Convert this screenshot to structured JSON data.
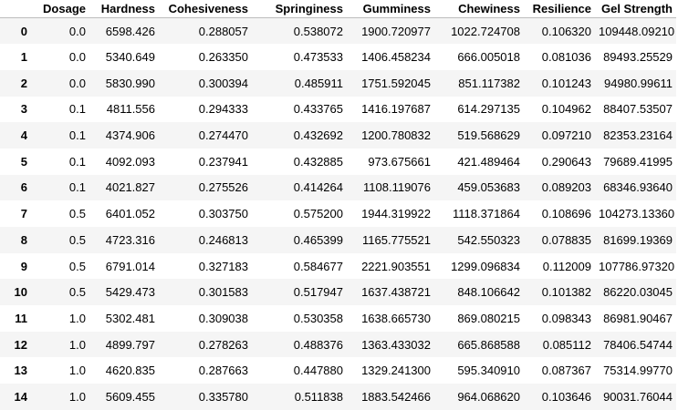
{
  "dataframe": {
    "columns": [
      "Dosage",
      "Hardness",
      "Cohesiveness",
      "Springiness",
      "Gumminess",
      "Chewiness",
      "Resilience",
      "Gel Strength"
    ],
    "rows": [
      {
        "index": "0",
        "cells": [
          "0.0",
          "6598.426",
          "0.288057",
          "0.538072",
          "1900.720977",
          "1022.724708",
          "0.106320",
          "109448.09210"
        ]
      },
      {
        "index": "1",
        "cells": [
          "0.0",
          "5340.649",
          "0.263350",
          "0.473533",
          "1406.458234",
          "666.005018",
          "0.081036",
          "89493.25529"
        ]
      },
      {
        "index": "2",
        "cells": [
          "0.0",
          "5830.990",
          "0.300394",
          "0.485911",
          "1751.592045",
          "851.117382",
          "0.101243",
          "94980.99611"
        ]
      },
      {
        "index": "3",
        "cells": [
          "0.1",
          "4811.556",
          "0.294333",
          "0.433765",
          "1416.197687",
          "614.297135",
          "0.104962",
          "88407.53507"
        ]
      },
      {
        "index": "4",
        "cells": [
          "0.1",
          "4374.906",
          "0.274470",
          "0.432692",
          "1200.780832",
          "519.568629",
          "0.097210",
          "82353.23164"
        ]
      },
      {
        "index": "5",
        "cells": [
          "0.1",
          "4092.093",
          "0.237941",
          "0.432885",
          "973.675661",
          "421.489464",
          "0.290643",
          "79689.41995"
        ]
      },
      {
        "index": "6",
        "cells": [
          "0.1",
          "4021.827",
          "0.275526",
          "0.414264",
          "1108.119076",
          "459.053683",
          "0.089203",
          "68346.93640"
        ]
      },
      {
        "index": "7",
        "cells": [
          "0.5",
          "6401.052",
          "0.303750",
          "0.575200",
          "1944.319922",
          "1118.371864",
          "0.108696",
          "104273.13360"
        ]
      },
      {
        "index": "8",
        "cells": [
          "0.5",
          "4723.316",
          "0.246813",
          "0.465399",
          "1165.775521",
          "542.550323",
          "0.078835",
          "81699.19369"
        ]
      },
      {
        "index": "9",
        "cells": [
          "0.5",
          "6791.014",
          "0.327183",
          "0.584677",
          "2221.903551",
          "1299.096834",
          "0.112009",
          "107786.97320"
        ]
      },
      {
        "index": "10",
        "cells": [
          "0.5",
          "5429.473",
          "0.301583",
          "0.517947",
          "1637.438721",
          "848.106642",
          "0.101382",
          "86220.03045"
        ]
      },
      {
        "index": "11",
        "cells": [
          "1.0",
          "5302.481",
          "0.309038",
          "0.530358",
          "1638.665730",
          "869.080215",
          "0.098343",
          "86981.90467"
        ]
      },
      {
        "index": "12",
        "cells": [
          "1.0",
          "4899.797",
          "0.278263",
          "0.488376",
          "1363.433032",
          "665.868588",
          "0.085112",
          "78406.54744"
        ]
      },
      {
        "index": "13",
        "cells": [
          "1.0",
          "4620.835",
          "0.287663",
          "0.447880",
          "1329.241300",
          "595.340910",
          "0.087367",
          "75314.99770"
        ]
      },
      {
        "index": "14",
        "cells": [
          "1.0",
          "5609.455",
          "0.335780",
          "0.511838",
          "1883.542466",
          "964.068620",
          "0.103646",
          "90031.76044"
        ]
      }
    ]
  },
  "colors": {
    "row_odd": "#f5f5f5",
    "row_even": "#ffffff",
    "header_border": "#bdbdbd",
    "text": "#000000"
  }
}
